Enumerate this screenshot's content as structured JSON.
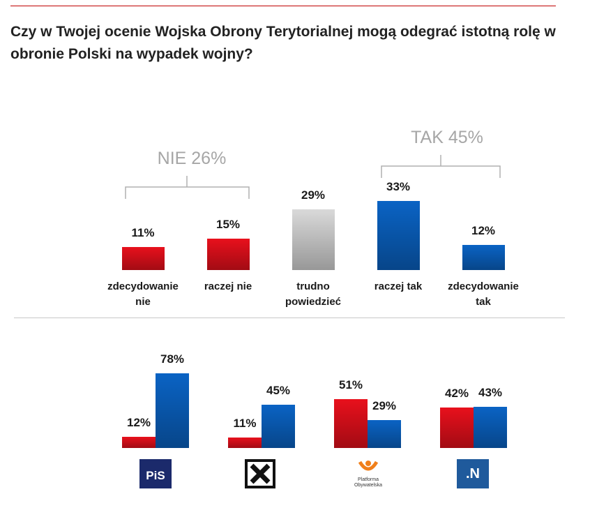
{
  "chart_data": [
    {
      "type": "bar",
      "title": "Czy w Twojej ocenie Wojska Obrony Terytorialnej mogą odegrać istotną rolę w obronie Polski na wypadek wojny?",
      "annotations": [
        "NIE 26%",
        "TAK 45%"
      ],
      "categories": [
        "zdecydowanie nie",
        "raczej nie",
        "trudno powiedzieć",
        "raczej tak",
        "zdecydowanie tak"
      ],
      "values": [
        11,
        15,
        29,
        33,
        12
      ],
      "value_labels": [
        "11%",
        "15%",
        "29%",
        "33%",
        "12%"
      ],
      "colors": [
        "#e8101c",
        "#e8101c",
        "#d9d9d9",
        "#0a63c4",
        "#0a63c4"
      ]
    },
    {
      "type": "grouped_bar",
      "categories": [
        "PiS",
        null,
        "Platforma Obywatelska",
        ".N"
      ],
      "series": [
        {
          "color": "#e8101c",
          "values": [
            12,
            11,
            51,
            42
          ],
          "value_labels": [
            "12%",
            "11%",
            "51%",
            "42%"
          ]
        },
        {
          "color": "#0a63c4",
          "values": [
            78,
            45,
            29,
            43
          ],
          "value_labels": [
            "78%",
            "45%",
            "29%",
            "43%"
          ]
        }
      ]
    }
  ]
}
